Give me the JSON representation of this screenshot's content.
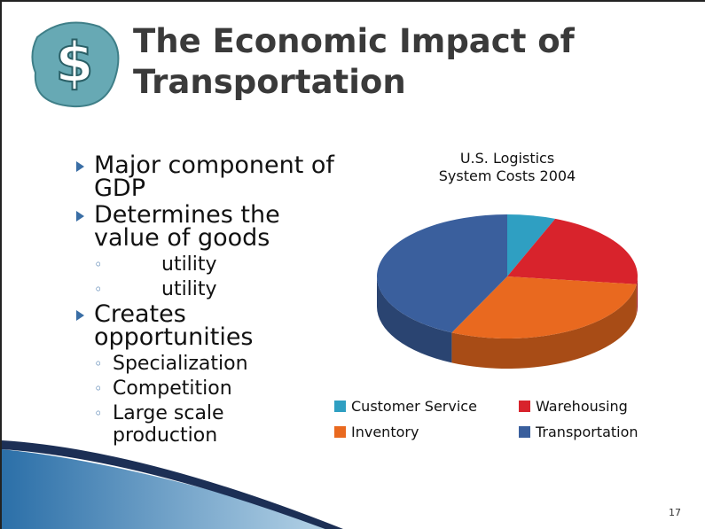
{
  "header": {
    "logo": "$",
    "title": [
      "The Economic Impact of",
      "Transportation"
    ]
  },
  "bullets": [
    {
      "text": "Major component of GDP",
      "sub": []
    },
    {
      "text": "Determines the value of goods",
      "sub": [
        "utility",
        "utility"
      ]
    },
    {
      "text": "Creates opportunities",
      "sub": [
        "Specialization",
        "Competition",
        "Large scale production"
      ]
    }
  ],
  "chart_data": {
    "type": "pie3d",
    "title": [
      "U.S. Logistics",
      "System Costs 2004"
    ],
    "categories": [
      "Customer Service",
      "Warehousing",
      "Inventory",
      "Transportation"
    ],
    "values": [
      6,
      21,
      30,
      43
    ],
    "colors": [
      "#2f9fc2",
      "#d8232c",
      "#e9691f",
      "#3a5f9d"
    ],
    "legend": "bottom"
  },
  "page_number": "17"
}
